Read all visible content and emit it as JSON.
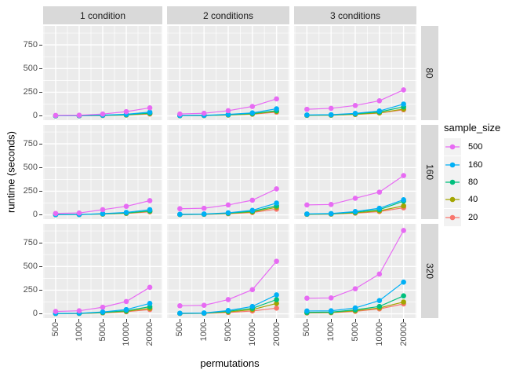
{
  "axes": {
    "x_title": "permutations",
    "y_title": "runtime (seconds)",
    "x_tick_labels": [
      "500",
      "1000",
      "5000",
      "10000",
      "20000"
    ],
    "y_tick_labels": [
      "0",
      "250",
      "500",
      "750"
    ],
    "y_tick_values": [
      0,
      250,
      500,
      750
    ],
    "y_minor_values": [
      125,
      375,
      625,
      875
    ],
    "y_domain": [
      -45,
      950
    ]
  },
  "facets": {
    "col_labels": [
      "1 condition",
      "2 conditions",
      "3 conditions"
    ],
    "row_labels": [
      "80",
      "160",
      "320"
    ]
  },
  "legend": {
    "title": "sample_size",
    "entries": [
      {
        "label": "500",
        "color": "#E76BF3"
      },
      {
        "label": "160",
        "color": "#00B0F6"
      },
      {
        "label": "80",
        "color": "#00BF7D"
      },
      {
        "label": "40",
        "color": "#A3A500"
      },
      {
        "label": "20",
        "color": "#F8766D"
      }
    ]
  },
  "colors": {
    "panel_bg": "#EBEBEB",
    "strip_bg": "#D9D9D9",
    "grid": "#FFFFFF",
    "axis_text": "#4D4D4D",
    "tick_mark": "#333333",
    "legend_key_bg": "#F2F2F2",
    "series": {
      "500": "#E76BF3",
      "160": "#00B0F6",
      "80": "#00BF7D",
      "40": "#A3A500",
      "20": "#F8766D"
    }
  },
  "chart_data": {
    "type": "line",
    "x": [
      500,
      1000,
      5000,
      10000,
      20000
    ],
    "xlabel": "permutations",
    "ylabel": "runtime (seconds)",
    "ylim": [
      0,
      950
    ],
    "grid": true,
    "legend_title": "sample_size",
    "legend_position": "right",
    "facet_cols": [
      "1 condition",
      "2 conditions",
      "3 conditions"
    ],
    "facet_rows": [
      "80",
      "160",
      "320"
    ],
    "panels": [
      {
        "row": "80",
        "col": "1 condition",
        "series": [
          {
            "name": "500",
            "values": [
              5,
              7,
              20,
              45,
              85
            ]
          },
          {
            "name": "160",
            "values": [
              2,
              3,
              8,
              17,
              40
            ]
          },
          {
            "name": "80",
            "values": [
              1,
              2,
              6,
              12,
              30
            ]
          },
          {
            "name": "40",
            "values": [
              1,
              2,
              5,
              10,
              25
            ]
          },
          {
            "name": "20",
            "values": [
              1,
              1,
              4,
              9,
              20
            ]
          }
        ]
      },
      {
        "row": "80",
        "col": "2 conditions",
        "series": [
          {
            "name": "500",
            "values": [
              20,
              28,
              55,
              100,
              180
            ]
          },
          {
            "name": "160",
            "values": [
              4,
              6,
              16,
              32,
              75
            ]
          },
          {
            "name": "80",
            "values": [
              3,
              5,
              12,
              25,
              55
            ]
          },
          {
            "name": "40",
            "values": [
              2,
              4,
              10,
              20,
              48
            ]
          },
          {
            "name": "20",
            "values": [
              2,
              3,
              9,
              18,
              40
            ]
          }
        ]
      },
      {
        "row": "80",
        "col": "3 conditions",
        "series": [
          {
            "name": "500",
            "values": [
              70,
              80,
              110,
              160,
              275
            ]
          },
          {
            "name": "160",
            "values": [
              10,
              13,
              27,
              52,
              125
            ]
          },
          {
            "name": "80",
            "values": [
              8,
              10,
              22,
              42,
              95
            ]
          },
          {
            "name": "40",
            "values": [
              6,
              8,
              17,
              32,
              72
            ]
          },
          {
            "name": "20",
            "values": [
              5,
              7,
              15,
              30,
              65
            ]
          }
        ]
      },
      {
        "row": "160",
        "col": "1 condition",
        "series": [
          {
            "name": "500",
            "values": [
              15,
              20,
              55,
              90,
              150
            ]
          },
          {
            "name": "160",
            "values": [
              3,
              4,
              13,
              26,
              55
            ]
          },
          {
            "name": "80",
            "values": [
              2,
              3,
              10,
              20,
              42
            ]
          },
          {
            "name": "40",
            "values": [
              2,
              3,
              9,
              17,
              38
            ]
          },
          {
            "name": "20",
            "values": [
              2,
              3,
              8,
              15,
              32
            ]
          }
        ]
      },
      {
        "row": "160",
        "col": "2 conditions",
        "series": [
          {
            "name": "500",
            "values": [
              65,
              70,
              105,
              155,
              275
            ]
          },
          {
            "name": "160",
            "values": [
              6,
              9,
              22,
              48,
              125
            ]
          },
          {
            "name": "80",
            "values": [
              4,
              7,
              18,
              38,
              95
            ]
          },
          {
            "name": "40",
            "values": [
              3,
              6,
              15,
              30,
              80
            ]
          },
          {
            "name": "20",
            "values": [
              3,
              5,
              12,
              25,
              60
            ]
          }
        ]
      },
      {
        "row": "160",
        "col": "3 conditions",
        "series": [
          {
            "name": "500",
            "values": [
              105,
              110,
              175,
              240,
              415
            ]
          },
          {
            "name": "160",
            "values": [
              10,
              14,
              35,
              70,
              160
            ]
          },
          {
            "name": "80",
            "values": [
              8,
              11,
              28,
              55,
              145
            ]
          },
          {
            "name": "40",
            "values": [
              6,
              9,
              22,
              42,
              95
            ]
          },
          {
            "name": "20",
            "values": [
              5,
              8,
              18,
              35,
              75
            ]
          }
        ]
      },
      {
        "row": "320",
        "col": "1 condition",
        "series": [
          {
            "name": "500",
            "values": [
              25,
              32,
              70,
              130,
              280
            ]
          },
          {
            "name": "160",
            "values": [
              4,
              6,
              20,
              45,
              110
            ]
          },
          {
            "name": "80",
            "values": [
              3,
              5,
              15,
              32,
              75
            ]
          },
          {
            "name": "40",
            "values": [
              3,
              4,
              12,
              26,
              58
            ]
          },
          {
            "name": "20",
            "values": [
              2,
              4,
              10,
              22,
              45
            ]
          }
        ]
      },
      {
        "row": "320",
        "col": "2 conditions",
        "series": [
          {
            "name": "500",
            "values": [
              85,
              90,
              150,
              255,
              555
            ]
          },
          {
            "name": "160",
            "values": [
              6,
              9,
              35,
              78,
              200
            ]
          },
          {
            "name": "80",
            "values": [
              5,
              7,
              27,
              58,
              150
            ]
          },
          {
            "name": "40",
            "values": [
              4,
              6,
              20,
              45,
              110
            ]
          },
          {
            "name": "20",
            "values": [
              3,
              5,
              14,
              30,
              60
            ]
          }
        ]
      },
      {
        "row": "320",
        "col": "3 conditions",
        "series": [
          {
            "name": "500",
            "values": [
              165,
              168,
              265,
              420,
              880
            ]
          },
          {
            "name": "160",
            "values": [
              30,
              32,
              62,
              140,
              335
            ]
          },
          {
            "name": "80",
            "values": [
              15,
              18,
              42,
              78,
              190
            ]
          },
          {
            "name": "40",
            "values": [
              12,
              14,
              32,
              62,
              125
            ]
          },
          {
            "name": "20",
            "values": [
              9,
              12,
              26,
              52,
              105
            ]
          }
        ]
      }
    ]
  }
}
